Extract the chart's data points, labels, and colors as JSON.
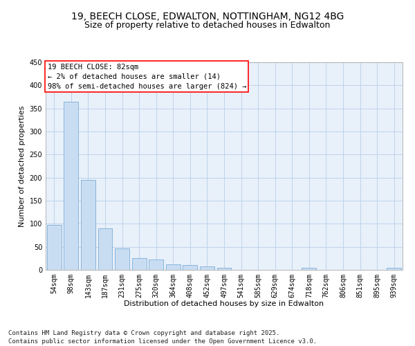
{
  "title_line1": "19, BEECH CLOSE, EDWALTON, NOTTINGHAM, NG12 4BG",
  "title_line2": "Size of property relative to detached houses in Edwalton",
  "xlabel": "Distribution of detached houses by size in Edwalton",
  "ylabel": "Number of detached properties",
  "bar_color": "#c9ddf2",
  "bar_edge_color": "#7aadd6",
  "grid_color": "#b8cfe8",
  "bg_color": "#e8f0fa",
  "categories": [
    "54sqm",
    "98sqm",
    "143sqm",
    "187sqm",
    "231sqm",
    "275sqm",
    "320sqm",
    "364sqm",
    "408sqm",
    "452sqm",
    "497sqm",
    "541sqm",
    "585sqm",
    "629sqm",
    "674sqm",
    "718sqm",
    "762sqm",
    "806sqm",
    "851sqm",
    "895sqm",
    "939sqm"
  ],
  "values": [
    97,
    365,
    195,
    90,
    47,
    25,
    22,
    12,
    10,
    7,
    4,
    0,
    0,
    0,
    0,
    4,
    0,
    0,
    0,
    0,
    4
  ],
  "ylim": [
    0,
    450
  ],
  "yticks": [
    0,
    50,
    100,
    150,
    200,
    250,
    300,
    350,
    400,
    450
  ],
  "annotation_box_text": "19 BEECH CLOSE: 82sqm\n← 2% of detached houses are smaller (14)\n98% of semi-detached houses are larger (824) →",
  "footer_text": "Contains HM Land Registry data © Crown copyright and database right 2025.\nContains public sector information licensed under the Open Government Licence v3.0.",
  "title1_fontsize": 10,
  "title2_fontsize": 9,
  "axis_label_fontsize": 8,
  "tick_fontsize": 7,
  "annotation_fontsize": 7.5,
  "footer_fontsize": 6.5
}
